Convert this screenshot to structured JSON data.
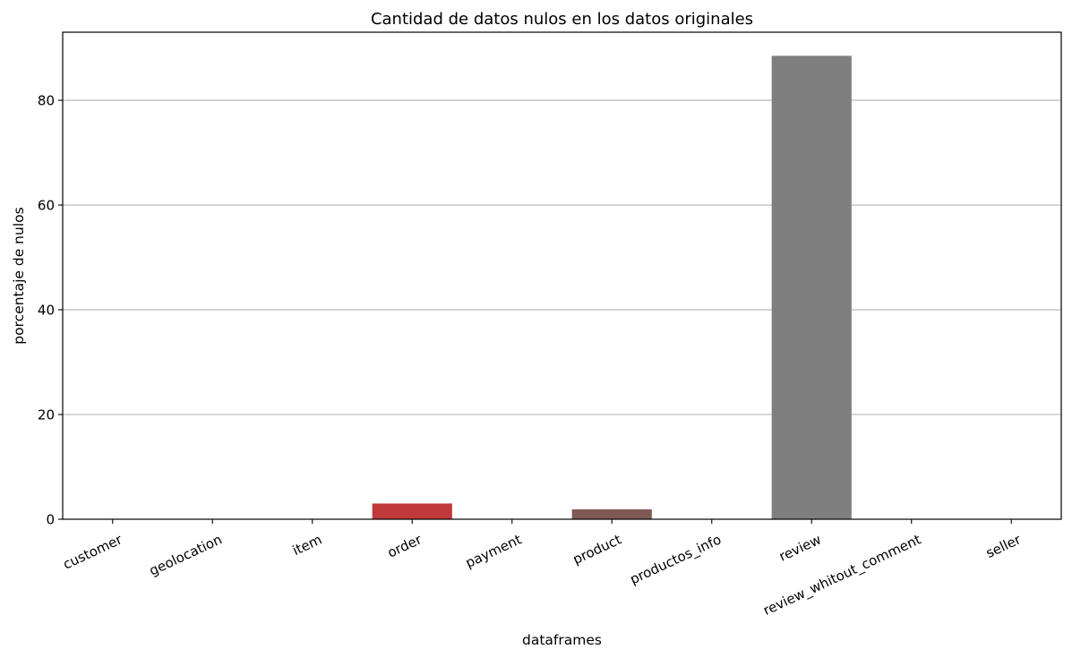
{
  "chart_data": {
    "type": "bar",
    "title": "Cantidad de datos nulos en los datos originales",
    "xlabel": "dataframes",
    "ylabel": "porcentaje de nulos",
    "categories": [
      "customer",
      "geolocation",
      "item",
      "order",
      "payment",
      "product",
      "productos_info",
      "review",
      "review_whitout_comment",
      "seller"
    ],
    "values": [
      0,
      0,
      0,
      3.0,
      0,
      1.9,
      0,
      88.5,
      0,
      0
    ],
    "colors": [
      "#1f77b4",
      "#ff7f0e",
      "#2ca02c",
      "#c0393b",
      "#9467bd",
      "#7f5a53",
      "#e377c2",
      "#7f7f7f",
      "#bcbd22",
      "#17becf"
    ],
    "ylim": [
      0,
      93
    ],
    "yticks": [
      0,
      20,
      40,
      60,
      80
    ],
    "grid": "y",
    "legend": "none"
  }
}
